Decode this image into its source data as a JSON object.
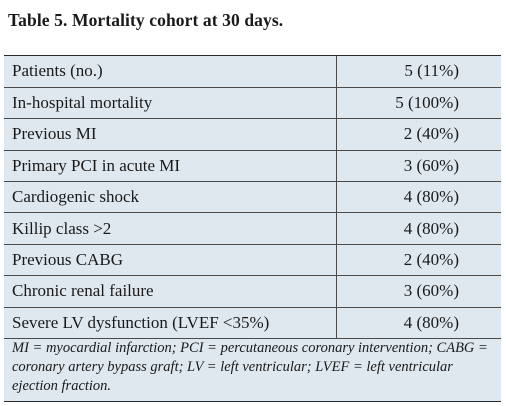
{
  "caption": "Table 5. Mortality cohort at 30 days.",
  "rows": [
    {
      "label": "Patients (no.)",
      "value": "5 (11%)"
    },
    {
      "label": "In-hospital mortality",
      "value": "5 (100%)"
    },
    {
      "label": "Previous MI",
      "value": "2 (40%)"
    },
    {
      "label": "Primary PCI in acute MI",
      "value": "3 (60%)"
    },
    {
      "label": "Cardiogenic shock",
      "value": "4 (80%)"
    },
    {
      "label": "Killip class >2",
      "value": "4 (80%)"
    },
    {
      "label": "Previous CABG",
      "value": "2 (40%)"
    },
    {
      "label": "Chronic renal failure",
      "value": "3 (60%)"
    },
    {
      "label": "Severe LV dysfunction (LVEF <35%)",
      "value": "4 (80%)"
    }
  ],
  "footnote": "MI = myocardial infarction; PCI = percutaneous coronary intervention; CABG = coronary artery bypass graft; LV = left ventricular; LVEF = left ventricular ejection fraction.",
  "colors": {
    "table_background": "#dfe8ef",
    "rule": "#2a2a2a"
  }
}
